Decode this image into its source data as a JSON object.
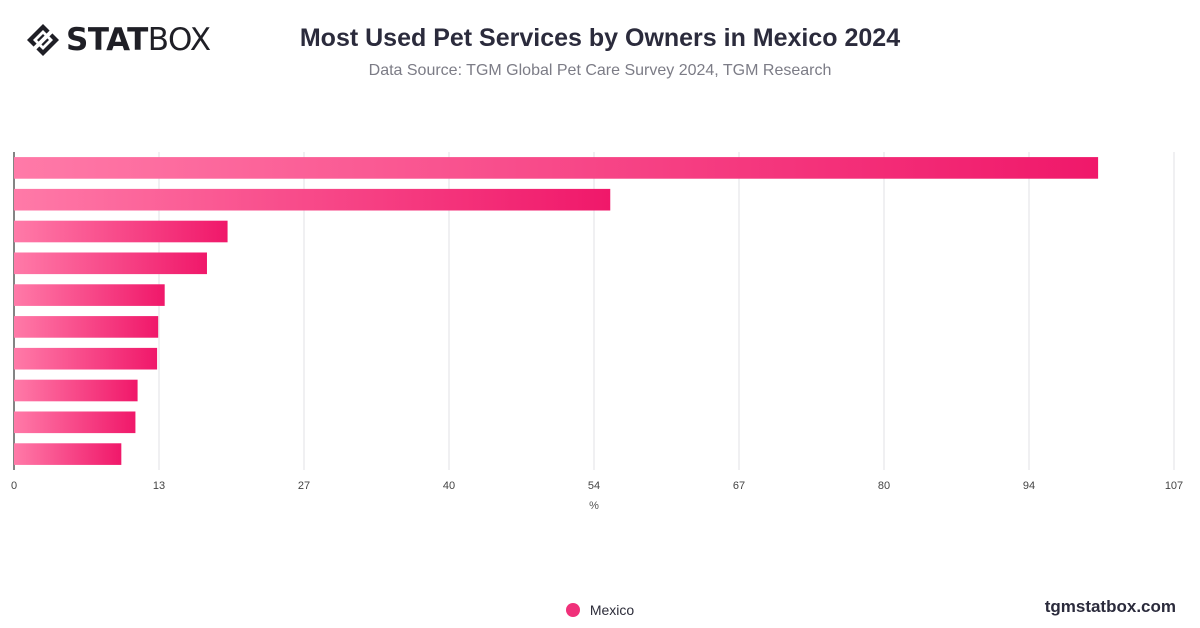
{
  "header": {
    "logo_bold": "STAT",
    "logo_light": "BOX",
    "title": "Most Used Pet Services by Owners in Mexico 2024",
    "subtitle": "Data Source: TGM Global Pet Care Survey 2024, TGM Research"
  },
  "footer": {
    "site": "tgmstatbox.com"
  },
  "colors": {
    "bar_start": "#ff7aa8",
    "bar_end": "#f0186a",
    "legend_dot": "#f0317a",
    "grid": "#e2e2e6",
    "axis": "#333333"
  },
  "chart_data": {
    "type": "bar",
    "orientation": "horizontal",
    "categories": [
      "",
      "",
      "",
      "",
      "",
      "",
      "",
      "",
      "",
      ""
    ],
    "series": [
      {
        "name": "Mexico",
        "values": [
          100,
          55,
          19.7,
          17.8,
          13.9,
          13.3,
          13.2,
          11.4,
          11.2,
          9.9
        ]
      }
    ],
    "xlabel": "%",
    "xlim": [
      0,
      107
    ],
    "xticks": [
      "0",
      "13",
      "27",
      "40",
      "54",
      "67",
      "80",
      "94",
      "107"
    ],
    "grid": true,
    "legend_position": "bottom"
  }
}
